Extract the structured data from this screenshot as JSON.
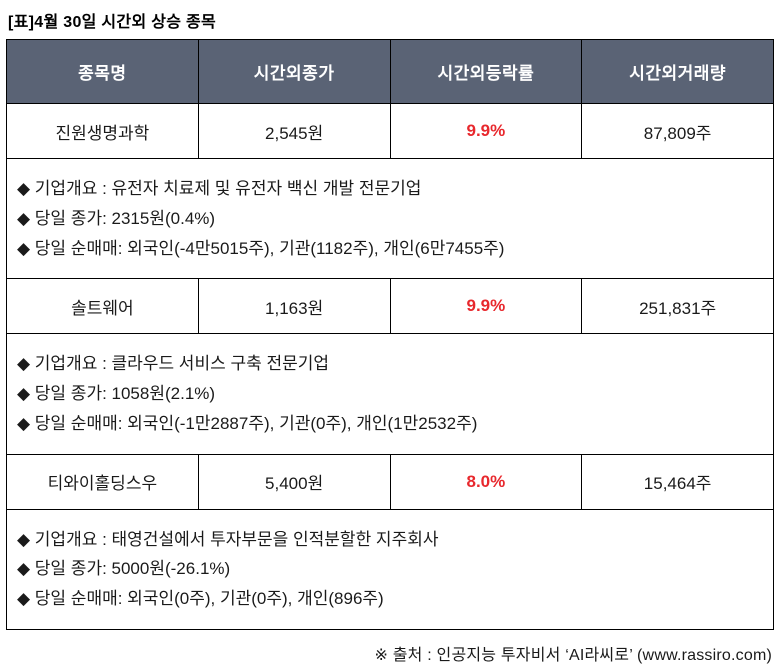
{
  "title": "[표]4월 30일 시간외 상승 종목",
  "colors": {
    "header_bg": "#5a6375",
    "change_red": "#e8282d"
  },
  "table": {
    "headers": [
      "종목명",
      "시간외종가",
      "시간외등락률",
      "시간외거래량"
    ],
    "rows": [
      {
        "name": "진원생명과학",
        "price": "2,545원",
        "change": "9.9%",
        "volume": "87,809주",
        "details": [
          "◆ 기업개요 : 유전자 치료제 및 유전자 백신 개발 전문기업",
          "◆ 당일 종가: 2315원(0.4%)",
          "◆ 당일 순매매: 외국인(-4만5015주), 기관(1182주), 개인(6만7455주)"
        ]
      },
      {
        "name": "솔트웨어",
        "price": "1,163원",
        "change": "9.9%",
        "volume": "251,831주",
        "details": [
          "◆ 기업개요 : 클라우드 서비스 구축 전문기업",
          "◆ 당일 종가: 1058원(2.1%)",
          "◆ 당일 순매매: 외국인(-1만2887주), 기관(0주), 개인(1만2532주)"
        ]
      },
      {
        "name": "티와이홀딩스우",
        "price": "5,400원",
        "change": "8.0%",
        "volume": "15,464주",
        "details": [
          "◆ 기업개요 : 태영건설에서 투자부문을 인적분할한 지주회사",
          "◆ 당일 종가: 5000원(-26.1%)",
          "◆ 당일 순매매: 외국인(0주), 기관(0주), 개인(896주)"
        ]
      }
    ]
  },
  "footer": "※ 출처 : 인공지능 투자비서 ‘AI라씨로’ (www.rassiro.com)"
}
